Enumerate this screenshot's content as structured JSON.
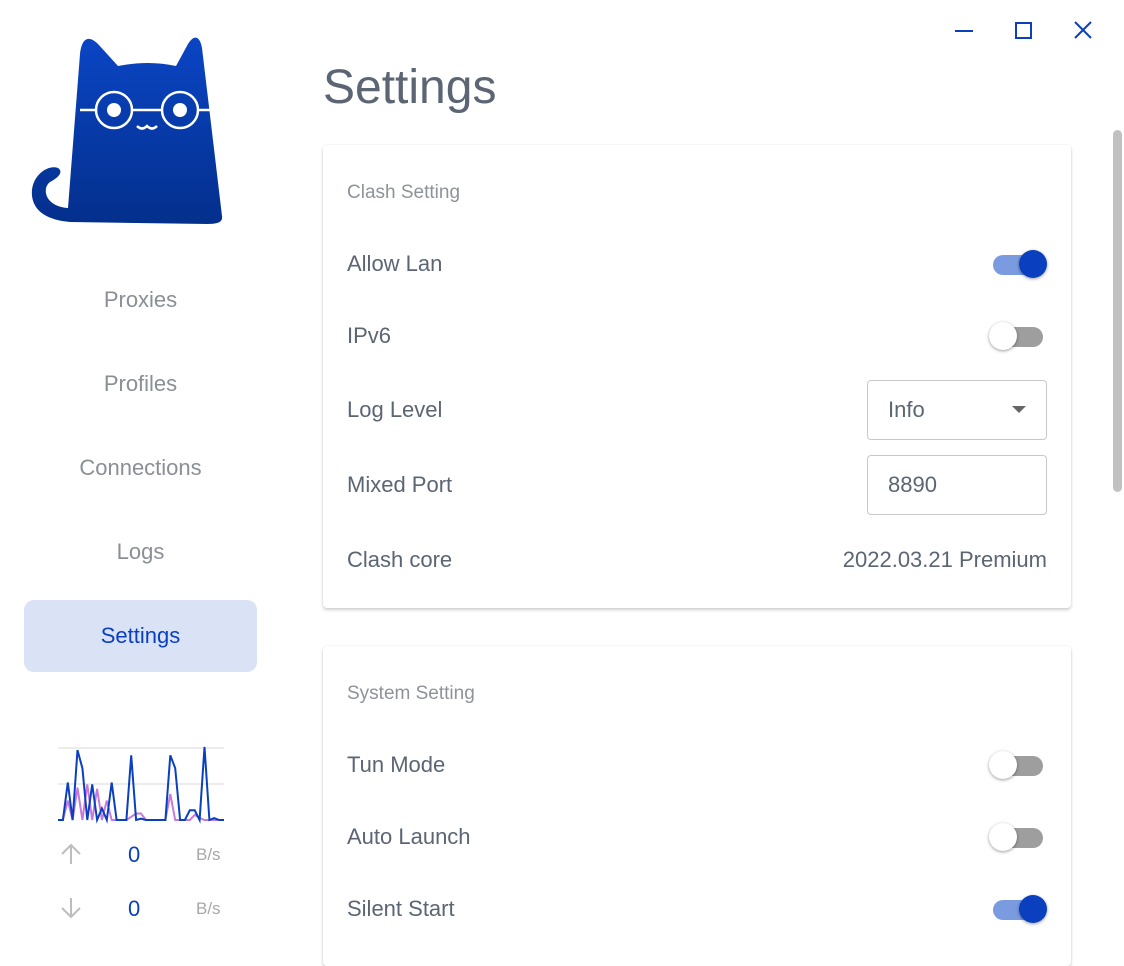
{
  "window": {
    "minimize_icon": "minimize-icon",
    "maximize_icon": "maximize-icon",
    "close_icon": "close-icon",
    "accent": "#0a3fbf"
  },
  "sidebar": {
    "items": [
      {
        "label": "Proxies"
      },
      {
        "label": "Profiles"
      },
      {
        "label": "Connections"
      },
      {
        "label": "Logs"
      },
      {
        "label": "Settings",
        "active": true
      }
    ],
    "traffic": {
      "upload": {
        "value": "0",
        "unit": "B/s"
      },
      "download": {
        "value": "0",
        "unit": "B/s"
      },
      "chart_data": {
        "type": "line",
        "series": [
          {
            "color": "#0a3fbf",
            "values": [
              0,
              0,
              58,
              0,
              108,
              80,
              0,
              55,
              0,
              18,
              0,
              58,
              0,
              0,
              0,
              100,
              0,
              2,
              0,
              0,
              0,
              0,
              0,
              100,
              80,
              0,
              0,
              15,
              15,
              0,
              113,
              0,
              3,
              0,
              0
            ]
          },
          {
            "color": "#c87ad8",
            "values": [
              0,
              0,
              30,
              0,
              50,
              0,
              55,
              0,
              48,
              0,
              30,
              0,
              0,
              0,
              0,
              5,
              10,
              10,
              0,
              0,
              0,
              0,
              0,
              40,
              0,
              0,
              0,
              0,
              8,
              3,
              0,
              0,
              0,
              0,
              0
            ]
          }
        ],
        "ylim": [
          0,
          115
        ]
      }
    }
  },
  "page_title": "Settings",
  "clash_setting": {
    "title": "Clash Setting",
    "allow_lan": {
      "label": "Allow Lan",
      "on": true
    },
    "ipv6": {
      "label": "IPv6",
      "on": false
    },
    "log_level": {
      "label": "Log Level",
      "value": "Info"
    },
    "mixed_port": {
      "label": "Mixed Port",
      "value": "8890"
    },
    "clash_core": {
      "label": "Clash core",
      "value": "2022.03.21 Premium"
    }
  },
  "system_setting": {
    "title": "System Setting",
    "tun_mode": {
      "label": "Tun Mode",
      "on": false
    },
    "auto_launch": {
      "label": "Auto Launch",
      "on": false
    },
    "silent_start": {
      "label": "Silent Start",
      "on": true
    }
  }
}
